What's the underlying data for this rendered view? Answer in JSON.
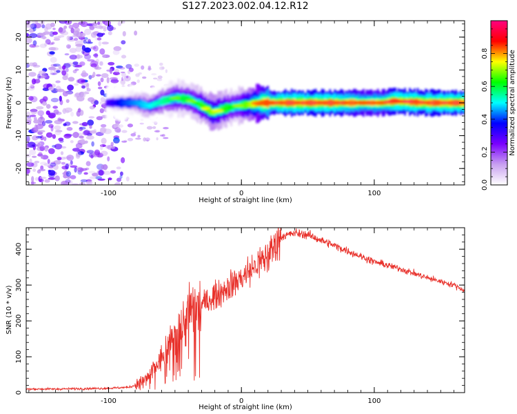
{
  "title": "S127.2023.002.04.12.R12",
  "chart_data": [
    {
      "type": "heatmap",
      "title": "S127.2023.002.04.12.R12",
      "xlabel": "Height of straight line (km)",
      "ylabel": "Frequency (Hz)",
      "xlim": [
        -162,
        168
      ],
      "ylim": [
        -25,
        25
      ],
      "x_ticks": [
        "-100",
        "0",
        "100"
      ],
      "y_ticks": [
        "-20",
        "-10",
        "0",
        "10",
        "20"
      ],
      "colorbar": {
        "label": "Normalized spectral amplitude",
        "ticks": [
          "0.0",
          "0.2",
          "0.4",
          "0.6",
          "0.8"
        ],
        "range": [
          0,
          1
        ],
        "colors": [
          "#ffffff",
          "#c8a0f0",
          "#7a00ff",
          "#0000ff",
          "#00ffff",
          "#00ff00",
          "#ffff00",
          "#ff0000",
          "#ff0080"
        ]
      },
      "ridge": {
        "x": [
          -102,
          -90,
          -80,
          -70,
          -60,
          -50,
          -40,
          -30,
          -22,
          -15,
          -5,
          5,
          15,
          30,
          50,
          70,
          90,
          105,
          115,
          140,
          168
        ],
        "frequency": [
          0,
          0,
          0,
          -1,
          0.5,
          1.5,
          1,
          -1,
          -3,
          -2,
          -1,
          -0.5,
          0,
          0,
          0,
          0,
          0,
          0,
          0.5,
          0,
          0
        ],
        "amplitude": [
          0.3,
          0.4,
          0.45,
          0.5,
          0.55,
          0.6,
          0.6,
          0.65,
          0.7,
          0.65,
          0.6,
          0.7,
          0.85,
          0.9,
          0.9,
          0.9,
          0.85,
          0.85,
          0.9,
          0.9,
          0.9
        ]
      },
      "noise_region": {
        "x_from": -162,
        "x_to": -82,
        "amplitude": 0.15
      }
    },
    {
      "type": "line",
      "xlabel": "Height of straight line (km)",
      "ylabel": "SNR (10 * v/v)",
      "xlim": [
        -162,
        168
      ],
      "ylim": [
        0,
        460
      ],
      "x_ticks": [
        "-100",
        "0",
        "100"
      ],
      "y_ticks": [
        "0",
        "100",
        "200",
        "300",
        "400"
      ],
      "series": [
        {
          "color": "#e8302a",
          "x": [
            -162,
            -140,
            -120,
            -100,
            -85,
            -80,
            -75,
            -70,
            -65,
            -60,
            -55,
            -50,
            -45,
            -40,
            -30,
            -20,
            -10,
            0,
            10,
            20,
            25,
            30,
            40,
            50,
            60,
            70,
            80,
            100,
            120,
            140,
            160,
            168
          ],
          "y": [
            10,
            10,
            11,
            12,
            15,
            20,
            30,
            45,
            70,
            95,
            130,
            160,
            190,
            215,
            245,
            270,
            295,
            320,
            350,
            380,
            410,
            435,
            445,
            440,
            425,
            410,
            395,
            365,
            345,
            320,
            300,
            285
          ]
        }
      ]
    }
  ]
}
